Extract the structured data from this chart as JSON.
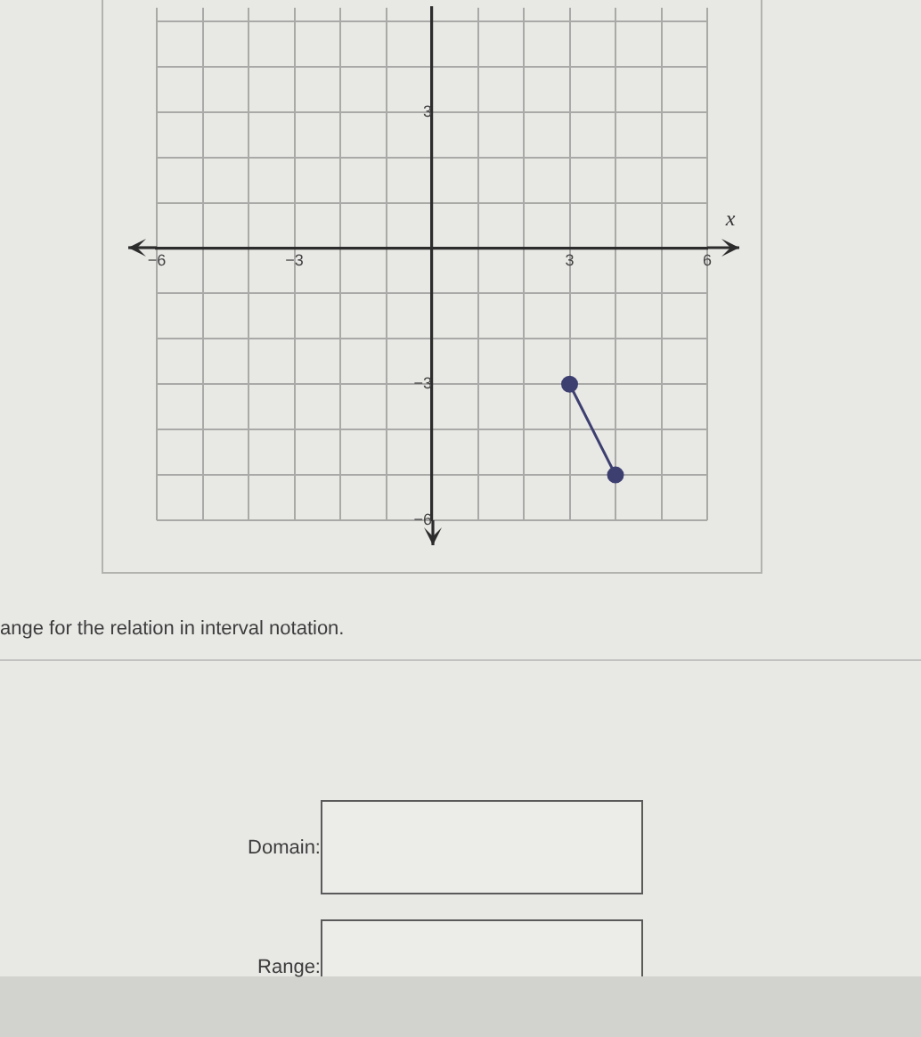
{
  "chart_data": {
    "type": "line",
    "xlabel": "x",
    "x": [
      3,
      4
    ],
    "values": [
      -3,
      -5
    ],
    "color": "#3d3f70",
    "marker": "circle",
    "line_style": "solid",
    "xlim": [
      -6,
      6
    ],
    "ylim": [
      -6,
      5.3
    ],
    "xticks": [
      {
        "value": -6,
        "label": "−6"
      },
      {
        "value": -5,
        "label": null
      },
      {
        "value": -4,
        "label": null
      },
      {
        "value": -3,
        "label": "−3"
      },
      {
        "value": -2,
        "label": null
      },
      {
        "value": -1,
        "label": null
      },
      {
        "value": 0,
        "label": null
      },
      {
        "value": 1,
        "label": null
      },
      {
        "value": 2,
        "label": null
      },
      3,
      {
        "value": 4,
        "label": null
      },
      {
        "value": 5,
        "label": null
      },
      6
    ],
    "yticks": [
      {
        "value": -6,
        "label": "−6"
      },
      {
        "value": -5,
        "label": null
      },
      {
        "value": -4,
        "label": null
      },
      {
        "value": -3,
        "label": "−3"
      },
      {
        "value": -2,
        "label": null
      },
      {
        "value": -1,
        "label": null
      },
      {
        "value": 0,
        "label": null
      },
      {
        "value": 1,
        "label": null
      },
      {
        "value": 2,
        "label": null
      },
      3,
      {
        "value": 4,
        "label": null
      },
      {
        "value": 5,
        "label": null
      }
    ],
    "grid": true,
    "annotations": [
      "ange for the relation in interval notation.",
      "Domain:",
      "Range:"
    ]
  }
}
